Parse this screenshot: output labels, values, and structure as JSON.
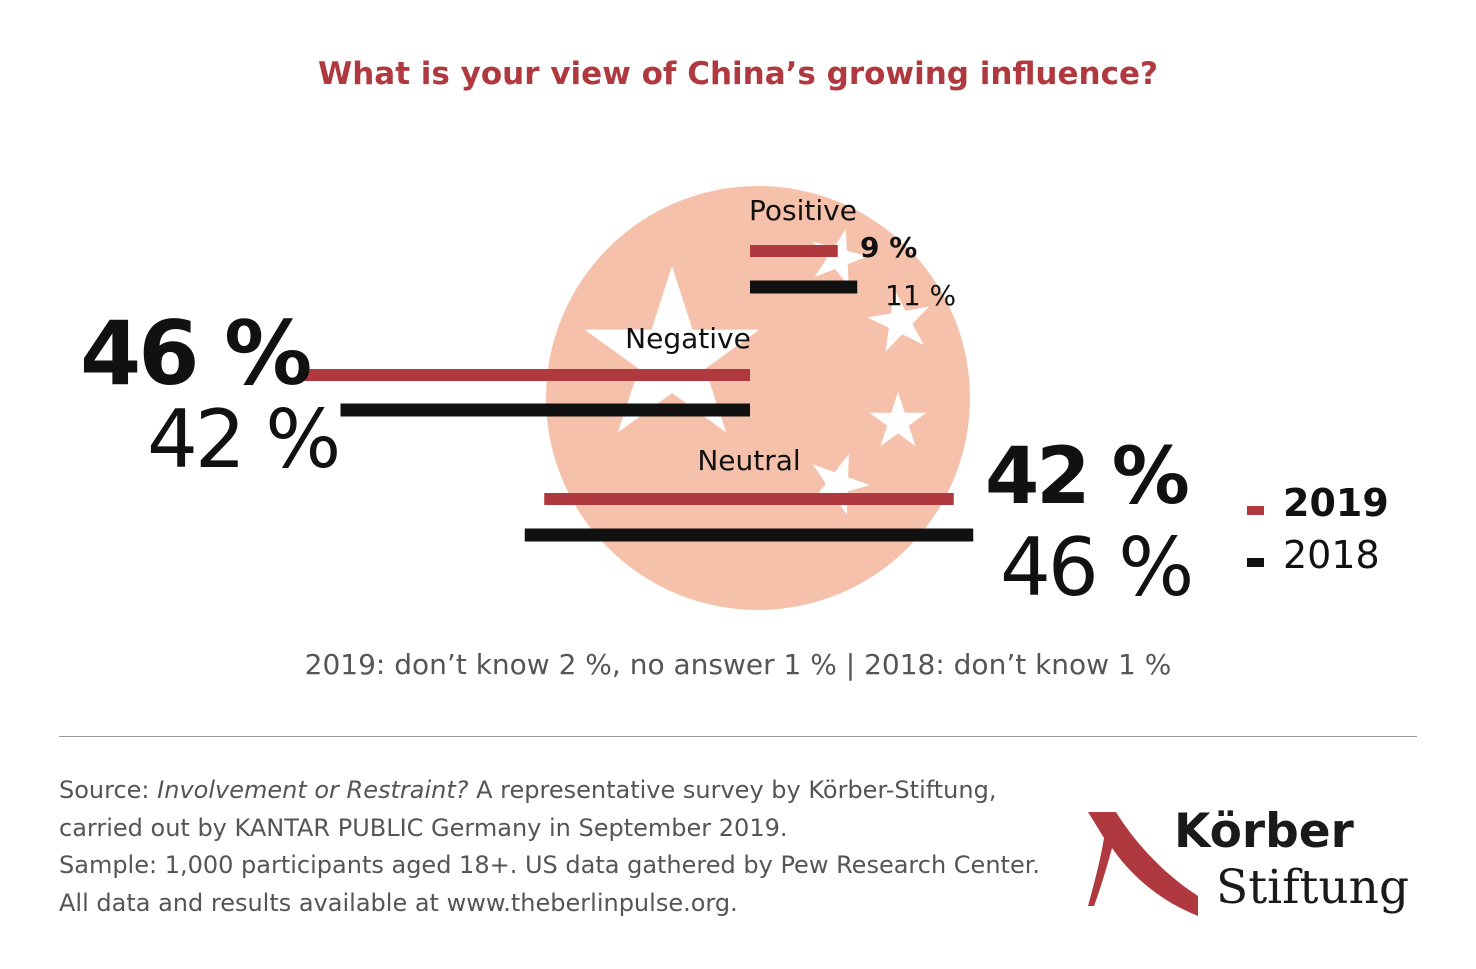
{
  "chart_data": {
    "type": "bar",
    "title": "What is your view of China’s growing influence?",
    "categories": [
      "Positive",
      "Negative",
      "Neutral"
    ],
    "series": [
      {
        "name": "2019",
        "values": [
          9,
          46,
          42
        ],
        "labels": [
          "9 %",
          "46 %",
          "42 %"
        ]
      },
      {
        "name": "2018",
        "values": [
          11,
          42,
          46
        ],
        "labels": [
          "11 %",
          "42 %",
          "46 %"
        ]
      }
    ],
    "unit": "%",
    "legend": {
      "position": "right",
      "entries": [
        "2019",
        "2018"
      ]
    }
  },
  "note": "2019: don’t know 2 %, no answer 1 % | 2018: don’t know 1 %",
  "source": {
    "lead": "Source: ",
    "title_italic": "Involvement or Restraint?",
    "rest": " A representative survey by Körber-Stiftung,",
    "line2": "carried out by KANTAR PUBLIC Germany in September 2019.",
    "line3": "Sample: 1,000 participants aged 18+. US data gathered by Pew Research Center.",
    "line4": "All data and results available at www.theberlinpulse.org."
  },
  "logo": {
    "word1": "Körber",
    "word2": "Stiftung"
  },
  "colors": {
    "series_2019": "#b0393f",
    "series_2018": "#111111",
    "title": "#b0393f",
    "circle": "#f6c1aa",
    "star": "#ffffff",
    "text_grey": "#555555"
  }
}
